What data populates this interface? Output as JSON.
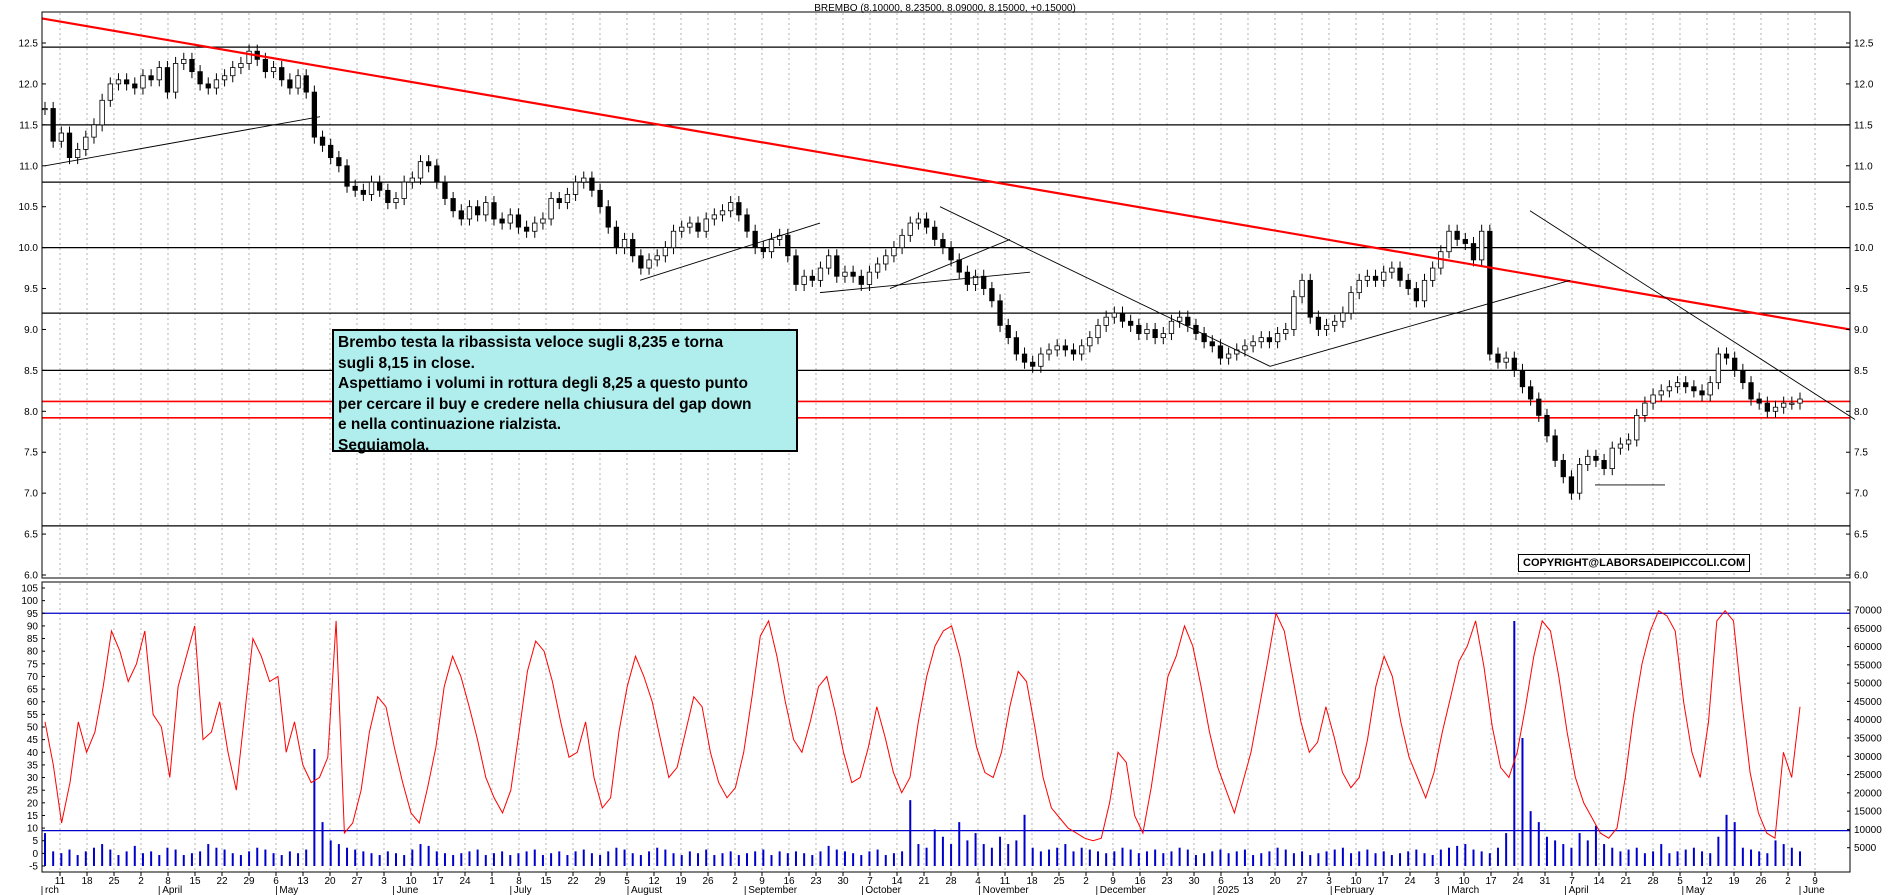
{
  "chart_data": [
    {
      "type": "candlestick",
      "title": "BREMBO (8.10000, 8.23500, 8.09000, 8.15000, +0.15000)",
      "ylim": [
        6.0,
        12.5
      ],
      "yticks": [
        "6.0",
        "6.5",
        "7.0",
        "7.5",
        "8.0",
        "8.5",
        "9.0",
        "9.5",
        "10.0",
        "10.5",
        "11.0",
        "11.5",
        "12.0",
        "12.5"
      ],
      "horizontal_levels_black": [
        12.45,
        11.5,
        10.8,
        10.0,
        9.2,
        8.5,
        6.6
      ],
      "horizontal_levels_red": [
        8.12,
        7.92
      ],
      "red_trendline": {
        "start": 12.8,
        "end": 9.0
      },
      "annotation_lines": [
        "Brembo testa la ribassista veloce sugli 8,235 e torna",
        "sugli 8,15 in close.",
        "Aspettiamo i volumi in rottura degli 8,25 a questo punto",
        "per cercare il buy e credere nella chiusura del gap down",
        "e nella continuazione rialzista.",
        "Seguiamola."
      ],
      "copyright": "COPYRIGHT@LABORSADEIPICCOLI.COM",
      "closing_prices": [
        11.7,
        11.3,
        11.4,
        11.1,
        11.2,
        11.35,
        11.5,
        11.8,
        12.0,
        12.05,
        12.0,
        11.95,
        12.1,
        12.05,
        12.2,
        11.9,
        12.25,
        12.3,
        12.15,
        12.0,
        11.95,
        12.05,
        12.1,
        12.2,
        12.25,
        12.4,
        12.3,
        12.15,
        12.2,
        12.05,
        11.95,
        12.1,
        11.9,
        11.35,
        11.25,
        11.1,
        11.0,
        10.75,
        10.7,
        10.65,
        10.8,
        10.7,
        10.55,
        10.6,
        10.8,
        10.85,
        11.05,
        11.0,
        10.8,
        10.6,
        10.45,
        10.35,
        10.5,
        10.4,
        10.55,
        10.35,
        10.3,
        10.4,
        10.25,
        10.2,
        10.3,
        10.35,
        10.6,
        10.55,
        10.65,
        10.8,
        10.85,
        10.7,
        10.5,
        10.25,
        10.0,
        10.1,
        9.9,
        9.75,
        9.85,
        9.9,
        10.0,
        10.2,
        10.25,
        10.3,
        10.2,
        10.35,
        10.4,
        10.45,
        10.55,
        10.4,
        10.2,
        10.0,
        9.95,
        10.1,
        10.15,
        9.9,
        9.55,
        9.65,
        9.6,
        9.75,
        9.9,
        9.65,
        9.7,
        9.65,
        9.55,
        9.7,
        9.8,
        9.9,
        10.0,
        10.15,
        10.3,
        10.35,
        10.25,
        10.1,
        10.0,
        9.85,
        9.7,
        9.55,
        9.65,
        9.5,
        9.35,
        9.05,
        8.9,
        8.7,
        8.6,
        8.55,
        8.7,
        8.75,
        8.8,
        8.75,
        8.7,
        8.8,
        8.9,
        9.05,
        9.15,
        9.2,
        9.1,
        9.05,
        8.95,
        9.0,
        8.9,
        8.95,
        9.1,
        9.15,
        9.05,
        8.95,
        8.85,
        8.8,
        8.65,
        8.7,
        8.75,
        8.8,
        8.85,
        8.9,
        8.85,
        8.95,
        9.0,
        9.4,
        9.6,
        9.15,
        9.0,
        9.05,
        9.1,
        9.2,
        9.45,
        9.6,
        9.65,
        9.6,
        9.7,
        9.75,
        9.6,
        9.5,
        9.35,
        9.6,
        9.75,
        9.95,
        10.2,
        10.1,
        10.05,
        9.85,
        10.2,
        8.7,
        8.6,
        8.65,
        8.5,
        8.3,
        8.15,
        7.95,
        7.7,
        7.4,
        7.2,
        7.0,
        7.35,
        7.45,
        7.4,
        7.3,
        7.55,
        7.6,
        7.65,
        7.95,
        8.1,
        8.2,
        8.25,
        8.3,
        8.35,
        8.3,
        8.25,
        8.2,
        8.35,
        8.7,
        8.65,
        8.5,
        8.35,
        8.15,
        8.1,
        8.0,
        8.05,
        8.1,
        8.1,
        8.15
      ]
    },
    {
      "type": "bar+line",
      "y_left_ticks": [
        "-5",
        "0",
        "5",
        "10",
        "15",
        "20",
        "25",
        "30",
        "35",
        "40",
        "45",
        "50",
        "55",
        "60",
        "65",
        "70",
        "75",
        "80",
        "85",
        "90",
        "95",
        "100",
        "105"
      ],
      "y_right_ticks": [
        "5000",
        "10000",
        "15000",
        "20000",
        "25000",
        "30000",
        "35000",
        "40000",
        "45000",
        "50000",
        "55000",
        "60000",
        "65000",
        "70000"
      ],
      "oscillator_levels": [
        95,
        9
      ],
      "oscillator": [
        52,
        35,
        12,
        28,
        52,
        40,
        48,
        66,
        88,
        80,
        68,
        75,
        88,
        55,
        50,
        30,
        66,
        78,
        90,
        45,
        48,
        60,
        40,
        25,
        55,
        85,
        78,
        68,
        70,
        40,
        52,
        35,
        28,
        30,
        38,
        92,
        8,
        12,
        25,
        48,
        62,
        58,
        42,
        28,
        16,
        12,
        26,
        42,
        66,
        78,
        70,
        58,
        45,
        30,
        22,
        16,
        25,
        48,
        72,
        84,
        80,
        68,
        52,
        38,
        40,
        52,
        30,
        18,
        22,
        48,
        66,
        78,
        70,
        60,
        45,
        30,
        34,
        48,
        62,
        58,
        40,
        28,
        22,
        26,
        40,
        62,
        86,
        92,
        78,
        60,
        45,
        40,
        52,
        66,
        70,
        56,
        40,
        28,
        30,
        42,
        58,
        46,
        32,
        24,
        30,
        52,
        70,
        82,
        88,
        90,
        78,
        60,
        42,
        32,
        30,
        40,
        58,
        72,
        68,
        50,
        30,
        18,
        14,
        10,
        8,
        6,
        5,
        6,
        20,
        40,
        36,
        15,
        8,
        26,
        48,
        70,
        78,
        90,
        82,
        66,
        48,
        34,
        25,
        16,
        28,
        40,
        58,
        76,
        95,
        88,
        70,
        52,
        40,
        44,
        58,
        46,
        32,
        26,
        30,
        45,
        66,
        78,
        70,
        52,
        38,
        30,
        22,
        32,
        48,
        62,
        76,
        82,
        92,
        74,
        50,
        34,
        30,
        40,
        58,
        78,
        92,
        88,
        70,
        48,
        30,
        20,
        14,
        8,
        6,
        10,
        30,
        55,
        75,
        88,
        96,
        94,
        88,
        60,
        40,
        30,
        52,
        92,
        96,
        92,
        60,
        32,
        16,
        8,
        6,
        40,
        30,
        58
      ],
      "volume_bars": [
        9000,
        4000,
        3500,
        4500,
        3000,
        4000,
        5000,
        6000,
        4500,
        3000,
        4000,
        5500,
        3500,
        4000,
        3000,
        5000,
        4500,
        3000,
        3500,
        4000,
        6000,
        5000,
        4500,
        3500,
        3000,
        4000,
        5000,
        4500,
        3500,
        3000,
        4000,
        3500,
        4500,
        32000,
        12000,
        7000,
        6000,
        5000,
        4500,
        4000,
        3500,
        3000,
        4000,
        3500,
        3000,
        4500,
        6000,
        5500,
        4000,
        3500,
        3000,
        3500,
        4000,
        4500,
        3000,
        3500,
        4000,
        3000,
        3500,
        4000,
        4500,
        3000,
        3500,
        4000,
        3000,
        4000,
        4500,
        3500,
        3000,
        4000,
        5000,
        4500,
        3500,
        3000,
        4000,
        5000,
        4500,
        3500,
        3000,
        4000,
        3500,
        4500,
        3000,
        3500,
        4000,
        3000,
        3500,
        4000,
        4500,
        3000,
        4000,
        3500,
        4000,
        3500,
        3000,
        4000,
        5500,
        4500,
        4000,
        3500,
        3000,
        4000,
        4500,
        3000,
        3500,
        4000,
        18000,
        6000,
        5000,
        10000,
        8000,
        6000,
        12000,
        7000,
        9000,
        6000,
        5000,
        8000,
        6000,
        7000,
        14000,
        5000,
        4000,
        4500,
        5000,
        6000,
        4000,
        5000,
        4500,
        4000,
        3500,
        4000,
        5000,
        4500,
        3500,
        4000,
        4500,
        3500,
        4000,
        5000,
        4500,
        3000,
        3500,
        4000,
        4500,
        3500,
        4000,
        4500,
        3000,
        3500,
        4000,
        5000,
        4500,
        3500,
        4000,
        3000,
        3500,
        4000,
        4500,
        5000,
        3500,
        4000,
        4500,
        3500,
        4000,
        3000,
        3500,
        4000,
        4500,
        3500,
        3000,
        4500,
        5000,
        5500,
        6000,
        4500,
        4000,
        3500,
        5000,
        9000,
        67000,
        35000,
        15000,
        12000,
        8000,
        7000,
        6000,
        5000,
        9000,
        7000,
        11000,
        6000,
        5000,
        4000,
        4500,
        5000,
        3500,
        4000,
        6000,
        3500,
        4000,
        4500,
        5000,
        4000,
        3500,
        8000,
        14000,
        12000,
        5000,
        4500,
        4000,
        3500,
        7000,
        6000,
        5000,
        4000
      ]
    }
  ],
  "x_axis": {
    "day_labels": [
      "11",
      "18",
      "25",
      "2",
      "8",
      "15",
      "22",
      "29",
      "6",
      "13",
      "20",
      "27",
      "3",
      "10",
      "17",
      "24",
      "1",
      "8",
      "15",
      "22",
      "29",
      "5",
      "12",
      "19",
      "26",
      "2",
      "9",
      "16",
      "23",
      "30",
      "7",
      "14",
      "21",
      "28",
      "4",
      "11",
      "18",
      "25",
      "2",
      "9",
      "16",
      "23",
      "30",
      "6",
      "13",
      "20",
      "27",
      "3",
      "10",
      "17",
      "24",
      "3",
      "10",
      "17",
      "24",
      "31",
      "7",
      "14",
      "21",
      "28",
      "5",
      "12",
      "19",
      "26",
      "2",
      "9"
    ],
    "month_labels": [
      "rch",
      "April",
      "May",
      "June",
      "July",
      "August",
      "September",
      "October",
      "November",
      "December",
      "2025",
      "February",
      "March",
      "April",
      "May",
      "June"
    ]
  },
  "colors": {
    "candle": "#000000",
    "resistance_line": "#ff0000",
    "oscillator": "#ff0000",
    "volume": "#0000cc",
    "grid": "#808080",
    "annotation_bg": "#b0eeee"
  }
}
